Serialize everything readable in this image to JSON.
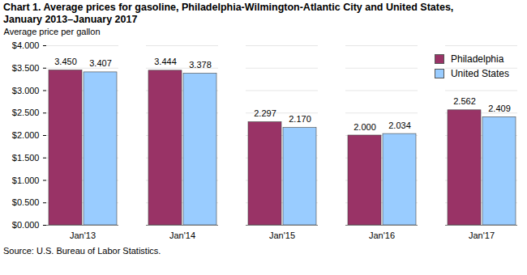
{
  "chart_data": {
    "type": "bar",
    "title": "Chart 1. Average prices for gasoline, Philadelphia-Wilmington-Atlantic City and United States, January 2013–January 2017",
    "y_label": "Average price per gallon",
    "caption": "Source: U.S. Bureau of Labor Statistics.",
    "categories": [
      "Jan'13",
      "Jan'14",
      "Jan'15",
      "Jan'16",
      "Jan'17"
    ],
    "series": [
      {
        "name": "Philadelphia",
        "color": "#993366",
        "values": [
          3.45,
          3.444,
          2.297,
          2.0,
          2.562
        ],
        "value_labels": [
          "3.450",
          "3.444",
          "2.297",
          "2.000",
          "2.562"
        ]
      },
      {
        "name": "United States",
        "color": "#99ccff",
        "values": [
          3.407,
          3.378,
          2.17,
          2.034,
          2.409
        ],
        "value_labels": [
          "3.407",
          "3.378",
          "2.170",
          "2.034",
          "2.409"
        ]
      }
    ],
    "ylim": [
      0,
      4
    ],
    "yticks": [
      {
        "value": 0,
        "label": "$0.000"
      },
      {
        "value": 0.5,
        "label": "$0.500"
      },
      {
        "value": 1,
        "label": "$1.000"
      },
      {
        "value": 1.5,
        "label": "$1.500"
      },
      {
        "value": 2,
        "label": "$2.000"
      },
      {
        "value": 2.5,
        "label": "$2.500"
      },
      {
        "value": 3,
        "label": "$3.000"
      },
      {
        "value": 3.5,
        "label": "$3.500"
      },
      {
        "value": 4,
        "label": "$4.000"
      }
    ],
    "grid": true,
    "legend": "upper right",
    "data_labels": true
  }
}
